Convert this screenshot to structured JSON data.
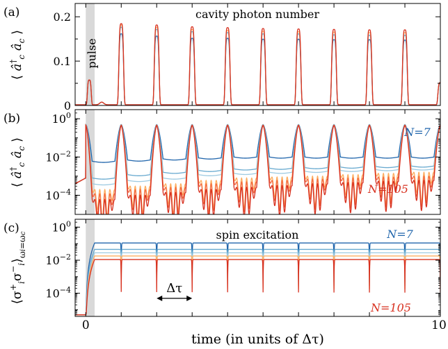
{
  "figure": {
    "xlabel": "time (in units of Δτ)",
    "x_tick_labels": [
      "0",
      "10"
    ]
  },
  "chart_data": [
    {
      "type": "line",
      "panel_label": "(a)",
      "title": "cavity photon number",
      "ylabel_html": "⟨ â†c âc ⟩",
      "ylim": [
        0,
        0.23
      ],
      "yscale": "linear",
      "y_ticks": [
        0,
        0.1,
        0.2
      ],
      "y_tick_labels": [
        "0",
        "0.1",
        "0.2"
      ],
      "xlim": [
        -0.3,
        10
      ],
      "annotation": "pulse",
      "pulse_interval": [
        0,
        0.25
      ],
      "peak_times": [
        0.1,
        1,
        2,
        3,
        4,
        5,
        6,
        7,
        8,
        9,
        10
      ],
      "series": [
        {
          "color": "#2166ac",
          "peak_values": [
            0.055,
            0.16,
            0.155,
            0.15,
            0.15,
            0.148,
            0.148,
            0.147,
            0.147,
            0.146,
            0.05
          ]
        },
        {
          "color": "#67a9cf",
          "peak_values": [
            0.056,
            0.175,
            0.17,
            0.165,
            0.163,
            0.16,
            0.16,
            0.158,
            0.157,
            0.157,
            0.05
          ]
        },
        {
          "color": "#fdae61",
          "peak_values": [
            0.056,
            0.18,
            0.175,
            0.17,
            0.168,
            0.166,
            0.165,
            0.164,
            0.163,
            0.163,
            0.05
          ]
        },
        {
          "color": "#d7301f",
          "peak_values": [
            0.056,
            0.183,
            0.18,
            0.176,
            0.174,
            0.172,
            0.171,
            0.17,
            0.169,
            0.169,
            0.05
          ]
        }
      ]
    },
    {
      "type": "line",
      "panel_label": "(b)",
      "yscale": "log",
      "ylim": [
        1e-05,
        3
      ],
      "y_ticks": [
        1,
        0.01,
        0.0001
      ],
      "y_tick_labels": [
        "10⁰",
        "10⁻²",
        "10⁻⁴"
      ],
      "xlim": [
        -0.3,
        10
      ],
      "series_labels": {
        "top": "N=7",
        "bottom": "N=105"
      },
      "series": [
        {
          "color": "#2166ac",
          "trough_values": [
            0.003,
            0.0035,
            0.004,
            0.0045,
            0.005,
            0.005,
            0.005,
            0.005,
            0.005,
            0.005
          ]
        },
        {
          "color": "#67a9cf",
          "trough_values": [
            0.0004,
            0.0006,
            0.0008,
            0.001,
            0.0012,
            0.0013,
            0.0014,
            0.0015,
            0.0016,
            0.0017
          ]
        },
        {
          "color": "#9ecae1",
          "trough_values": [
            0.0002,
            0.0003,
            0.0004,
            0.0006,
            0.0007,
            0.0008,
            0.0009,
            0.001,
            0.0011,
            0.0012
          ]
        },
        {
          "color": "#fdae61",
          "trough_values": [
            0.0001,
            0.00015,
            0.0002,
            0.0003,
            0.0004,
            0.00045,
            0.0005,
            0.0006,
            0.0007,
            0.0008
          ]
        },
        {
          "color": "#f46d43",
          "trough_values": [
            6e-05,
            0.0001,
            0.00013,
            0.0002,
            0.00025,
            0.0003,
            0.00035,
            0.0004,
            0.00045,
            0.0005
          ]
        },
        {
          "color": "#d7301f",
          "trough_values": [
            3e-05,
            5e-05,
            7e-05,
            0.0001,
            0.00013,
            0.00016,
            0.0002,
            0.00023,
            0.00027,
            0.0003
          ]
        }
      ]
    },
    {
      "type": "line",
      "panel_label": "(c)",
      "title": "spin excitation",
      "yscale": "log",
      "ylim": [
        4e-06,
        3
      ],
      "y_ticks": [
        1,
        0.01,
        0.0001
      ],
      "y_tick_labels": [
        "10⁰",
        "10⁻²",
        "10⁻⁴"
      ],
      "xlim": [
        -0.3,
        10
      ],
      "series_labels": {
        "top": "N=7",
        "bottom": "N=105"
      },
      "interval_label": "Δτ",
      "interval": [
        2,
        3
      ],
      "series": [
        {
          "color": "#2166ac",
          "plateau_value": 0.11
        },
        {
          "color": "#67a9cf",
          "plateau_value": 0.045
        },
        {
          "color": "#9ecae1",
          "plateau_value": 0.028
        },
        {
          "color": "#fdae61",
          "plateau_value": 0.018
        },
        {
          "color": "#d7301f",
          "plateau_value": 0.011
        }
      ]
    }
  ]
}
